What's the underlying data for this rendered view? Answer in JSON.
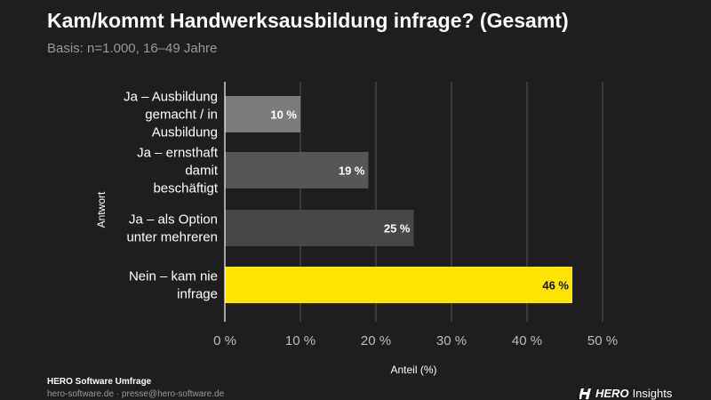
{
  "header": {
    "title": "Kam/kommt Handwerksausbildung infrage? (Gesamt)",
    "subtitle": "Basis: n=1.000, 16–49 Jahre"
  },
  "footer": {
    "source": "HERO Software Umfrage",
    "contact": "hero-software.de · presse@hero-software.de",
    "logo_brand": "HERO",
    "logo_suffix": "Insights"
  },
  "icons": {
    "logo": "hero-logo-icon"
  },
  "colors": {
    "background": "#1e1e1e",
    "highlight": "#ffe500",
    "bars": [
      "#7c7c7c",
      "#565656",
      "#474747",
      "#ffe500"
    ]
  },
  "chart_data": {
    "type": "bar",
    "orientation": "horizontal",
    "categories": [
      [
        "Ja – Ausbildung",
        "gemacht / in",
        "Ausbildung"
      ],
      [
        "Ja – ernsthaft",
        "damit",
        "beschäftigt"
      ],
      [
        "Ja – als Option",
        "unter mehreren"
      ],
      [
        "Nein – kam nie",
        "infrage"
      ]
    ],
    "values": [
      10,
      19,
      25,
      46
    ],
    "value_labels": [
      "10 %",
      "19 %",
      "25 %",
      "46 %"
    ],
    "xlabel": "Anteil (%)",
    "ylabel": "Antwort",
    "xlim": [
      0,
      50
    ],
    "xticks": [
      "0 %",
      "10 %",
      "20 %",
      "30 %",
      "40 %",
      "50 %"
    ],
    "grid": true
  }
}
